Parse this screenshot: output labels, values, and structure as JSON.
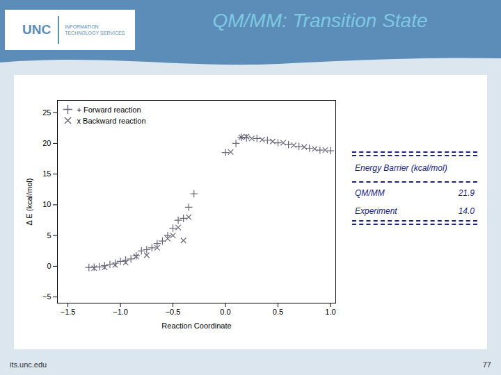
{
  "chart_data": {
    "type": "scatter",
    "title": "QM/MM: Transition State",
    "x_label": "Reaction Coordinate",
    "y_label": "Δ E (kcal/mol)",
    "xlim": [
      -1.6,
      1.05
    ],
    "ylim": [
      -6,
      27
    ],
    "xticks": [
      {
        "value": -1.5,
        "label": "−1.5"
      },
      {
        "value": -1.0,
        "label": "−1.0"
      },
      {
        "value": -0.5,
        "label": "−0.5"
      },
      {
        "value": 0.0,
        "label": "0.0"
      },
      {
        "value": 0.5,
        "label": "0.5"
      },
      {
        "value": 1.0,
        "label": "1.0"
      }
    ],
    "yticks": [
      -5,
      0,
      5,
      10,
      15,
      20,
      25
    ],
    "legend": "upper left",
    "series": [
      {
        "name": "+ Forward reaction",
        "color": "#666677",
        "marker": "plus",
        "x": [
          -1.3,
          -1.25,
          -1.2,
          -1.15,
          -1.1,
          -1.05,
          -1.0,
          -0.95,
          -0.9,
          -0.85,
          -0.8,
          -0.75,
          -0.7,
          -0.65,
          -0.6,
          -0.55,
          -0.5,
          -0.45,
          -0.4,
          -0.35,
          -0.3,
          0.0,
          0.1,
          0.15,
          0.2,
          0.3,
          0.4,
          0.5,
          0.6,
          0.7,
          0.8,
          0.9,
          1.0
        ],
        "values": [
          -0.2,
          -0.15,
          -0.1,
          0.1,
          0.3,
          0.5,
          0.8,
          1.0,
          1.2,
          1.7,
          2.5,
          2.7,
          3.0,
          3.7,
          4.1,
          5.0,
          6.2,
          7.5,
          7.8,
          9.6,
          11.8,
          18.5,
          20.0,
          21.0,
          20.9,
          20.8,
          20.5,
          20.1,
          19.8,
          19.5,
          19.2,
          18.9,
          18.8
        ]
      },
      {
        "name": "x Backward reaction",
        "color": "#666677",
        "marker": "times",
        "x": [
          -1.25,
          -1.15,
          -1.05,
          -0.95,
          -0.85,
          -0.75,
          -0.65,
          -0.55,
          -0.5,
          -0.45,
          -0.4,
          -0.35,
          0.05,
          0.15,
          0.2,
          0.25,
          0.35,
          0.45,
          0.55,
          0.65,
          0.75,
          0.85,
          0.95
        ],
        "values": [
          -0.3,
          -0.2,
          0.2,
          0.6,
          1.6,
          1.8,
          3.0,
          4.5,
          5.0,
          6.3,
          4.2,
          8.0,
          18.6,
          21.0,
          21.1,
          20.8,
          20.6,
          20.3,
          20.1,
          19.7,
          19.4,
          19.1,
          18.9
        ]
      }
    ],
    "table": {
      "header": "Energy Barrier (kcal/mol)",
      "labels": [
        "QM/MM",
        "Experiment"
      ],
      "values": [
        21.9,
        14.0
      ],
      "value_labels": [
        "21.9",
        "14.0"
      ]
    },
    "header_logo": [
      "UNC",
      "INFORMATION\nTECHNOLOGY SERVICES"
    ],
    "footer": [
      "its.unc.edu",
      "77"
    ]
  }
}
